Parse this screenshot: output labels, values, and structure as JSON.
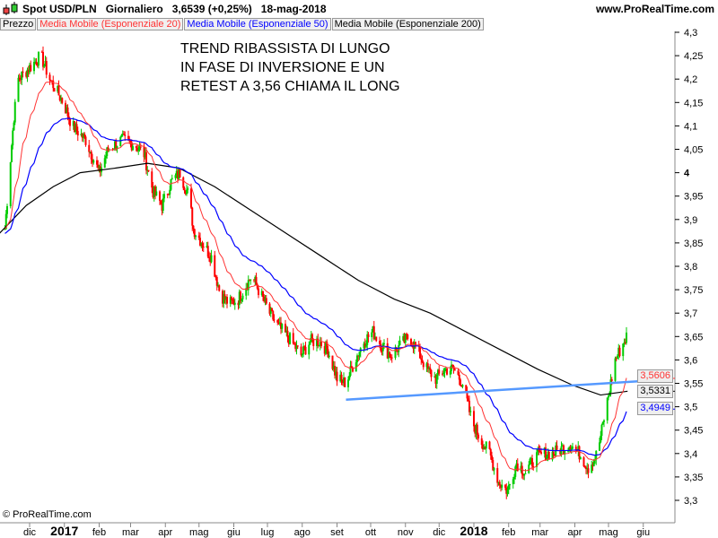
{
  "header": {
    "symbol": "Spot USD/PLN",
    "timeframe": "Giornaliero",
    "price": "3,6539 (+0,25%)",
    "date": "18-mag-2018",
    "site": "www.ProRealTime.com"
  },
  "legend": [
    {
      "label": "Prezzo",
      "color": "#000000"
    },
    {
      "label": "Media Mobile (Esponenziale 20)",
      "color": "#ff3333"
    },
    {
      "label": "Media Mobile (Esponenziale 50)",
      "color": "#0000ff"
    },
    {
      "label": "Media Mobile (Esponenziale 200)",
      "color": "#000000"
    }
  ],
  "annotation": [
    "TREND RIBASSISTA DI LUNGO",
    "IN FASE DI INVERSIONE E UN",
    "RETEST A 3,56 CHIAMA IL LONG"
  ],
  "copyright": "© ProRealTime.com",
  "chart_data": {
    "type": "candlestick",
    "ylim": [
      3.27,
      4.32
    ],
    "y_ticks": [
      "4,3",
      "4,25",
      "4,2",
      "4,15",
      "4,1",
      "4,05",
      "4",
      "3,95",
      "3,9",
      "3,85",
      "3,8",
      "3,75",
      "3,7",
      "3,65",
      "3,6",
      "3,55",
      "3,5",
      "3,45",
      "3,4",
      "3,35",
      "3,3"
    ],
    "x_ticks": [
      {
        "label": "dic",
        "date": "2016-12-01"
      },
      {
        "label": "2017",
        "date": "2017-01-01",
        "bold": true
      },
      {
        "label": "feb",
        "date": "2017-02-01"
      },
      {
        "label": "mar",
        "date": "2017-03-01"
      },
      {
        "label": "apr",
        "date": "2017-04-01"
      },
      {
        "label": "mag",
        "date": "2017-05-01"
      },
      {
        "label": "giu",
        "date": "2017-06-01"
      },
      {
        "label": "lug",
        "date": "2017-07-01"
      },
      {
        "label": "ago",
        "date": "2017-08-01"
      },
      {
        "label": "set",
        "date": "2017-09-01"
      },
      {
        "label": "ott",
        "date": "2017-10-01"
      },
      {
        "label": "nov",
        "date": "2017-11-01"
      },
      {
        "label": "dic",
        "date": "2017-12-01"
      },
      {
        "label": "2018",
        "date": "2018-01-01",
        "bold": true
      },
      {
        "label": "feb",
        "date": "2018-02-01"
      },
      {
        "label": "mar",
        "date": "2018-03-01"
      },
      {
        "label": "apr",
        "date": "2018-04-01"
      },
      {
        "label": "mag",
        "date": "2018-05-01"
      },
      {
        "label": "giu",
        "date": "2018-06-01"
      }
    ],
    "price_path": [
      [
        "2016-11-09",
        3.88
      ],
      [
        "2016-11-17",
        4.12
      ],
      [
        "2016-11-21",
        4.2
      ],
      [
        "2016-11-29",
        4.22
      ],
      [
        "2016-12-11",
        4.25
      ],
      [
        "2016-12-19",
        4.2
      ],
      [
        "2016-12-31",
        4.15
      ],
      [
        "2017-01-08",
        4.1
      ],
      [
        "2017-01-20",
        4.07
      ],
      [
        "2017-02-01",
        4.0
      ],
      [
        "2017-02-09",
        4.05
      ],
      [
        "2017-02-21",
        4.07
      ],
      [
        "2017-03-05",
        4.06
      ],
      [
        "2017-03-13",
        4.04
      ],
      [
        "2017-03-21",
        3.96
      ],
      [
        "2017-03-29",
        3.93
      ],
      [
        "2017-04-06",
        3.98
      ],
      [
        "2017-04-14",
        4.0
      ],
      [
        "2017-04-22",
        3.95
      ],
      [
        "2017-04-26",
        3.88
      ],
      [
        "2017-05-04",
        3.85
      ],
      [
        "2017-05-12",
        3.82
      ],
      [
        "2017-05-20",
        3.74
      ],
      [
        "2017-05-28",
        3.72
      ],
      [
        "2017-06-05",
        3.73
      ],
      [
        "2017-06-17",
        3.78
      ],
      [
        "2017-06-25",
        3.74
      ],
      [
        "2017-07-03",
        3.7
      ],
      [
        "2017-07-11",
        3.67
      ],
      [
        "2017-07-19",
        3.65
      ],
      [
        "2017-07-31",
        3.61
      ],
      [
        "2017-08-08",
        3.64
      ],
      [
        "2017-08-16",
        3.64
      ],
      [
        "2017-08-24",
        3.62
      ],
      [
        "2017-09-01",
        3.56
      ],
      [
        "2017-09-09",
        3.55
      ],
      [
        "2017-09-17",
        3.6
      ],
      [
        "2017-09-25",
        3.64
      ],
      [
        "2017-10-03",
        3.66
      ],
      [
        "2017-10-11",
        3.63
      ],
      [
        "2017-10-19",
        3.61
      ],
      [
        "2017-10-27",
        3.63
      ],
      [
        "2017-11-04",
        3.65
      ],
      [
        "2017-11-12",
        3.62
      ],
      [
        "2017-11-20",
        3.58
      ],
      [
        "2017-11-28",
        3.56
      ],
      [
        "2017-12-06",
        3.58
      ],
      [
        "2017-12-14",
        3.58
      ],
      [
        "2017-12-22",
        3.55
      ],
      [
        "2017-12-30",
        3.47
      ],
      [
        "2018-01-07",
        3.43
      ],
      [
        "2018-01-15",
        3.4
      ],
      [
        "2018-01-23",
        3.34
      ],
      [
        "2018-01-31",
        3.32
      ],
      [
        "2018-02-08",
        3.38
      ],
      [
        "2018-02-16",
        3.36
      ],
      [
        "2018-02-24",
        3.39
      ],
      [
        "2018-03-04",
        3.4
      ],
      [
        "2018-03-12",
        3.4
      ],
      [
        "2018-03-20",
        3.41
      ],
      [
        "2018-03-28",
        3.42
      ],
      [
        "2018-04-05",
        3.4
      ],
      [
        "2018-04-13",
        3.37
      ],
      [
        "2018-04-21",
        3.4
      ],
      [
        "2018-04-29",
        3.5
      ],
      [
        "2018-05-07",
        3.6
      ],
      [
        "2018-05-17",
        3.65
      ]
    ],
    "ema200_path": [
      [
        "2016-11-04",
        3.87
      ],
      [
        "2016-11-28",
        3.93
      ],
      [
        "2016-12-22",
        3.97
      ],
      [
        "2017-01-15",
        4.0
      ],
      [
        "2017-02-16",
        4.01
      ],
      [
        "2017-03-16",
        4.02
      ],
      [
        "2017-04-13",
        4.01
      ],
      [
        "2017-05-15",
        3.97
      ],
      [
        "2017-06-16",
        3.92
      ],
      [
        "2017-07-18",
        3.87
      ],
      [
        "2017-08-19",
        3.82
      ],
      [
        "2017-09-20",
        3.77
      ],
      [
        "2017-10-22",
        3.73
      ],
      [
        "2017-11-23",
        3.7
      ],
      [
        "2017-12-25",
        3.66
      ],
      [
        "2018-01-26",
        3.62
      ],
      [
        "2018-02-27",
        3.58
      ],
      [
        "2018-03-31",
        3.545
      ],
      [
        "2018-04-24",
        3.525
      ],
      [
        "2018-05-18",
        3.5331
      ]
    ],
    "ema_last": {
      "ema20": "3,5606",
      "ema50": "3,4949",
      "ema200": "3,5331"
    },
    "trendline": [
      [
        "2017-09-09",
        3.515
      ],
      [
        "2018-06-14",
        3.557
      ]
    ],
    "colors": {
      "up": "#00cc00",
      "down": "#ff0000",
      "ema20": "#ff3333",
      "ema50": "#0000ff",
      "ema200": "#000000",
      "trendline": "#5599ff"
    }
  }
}
